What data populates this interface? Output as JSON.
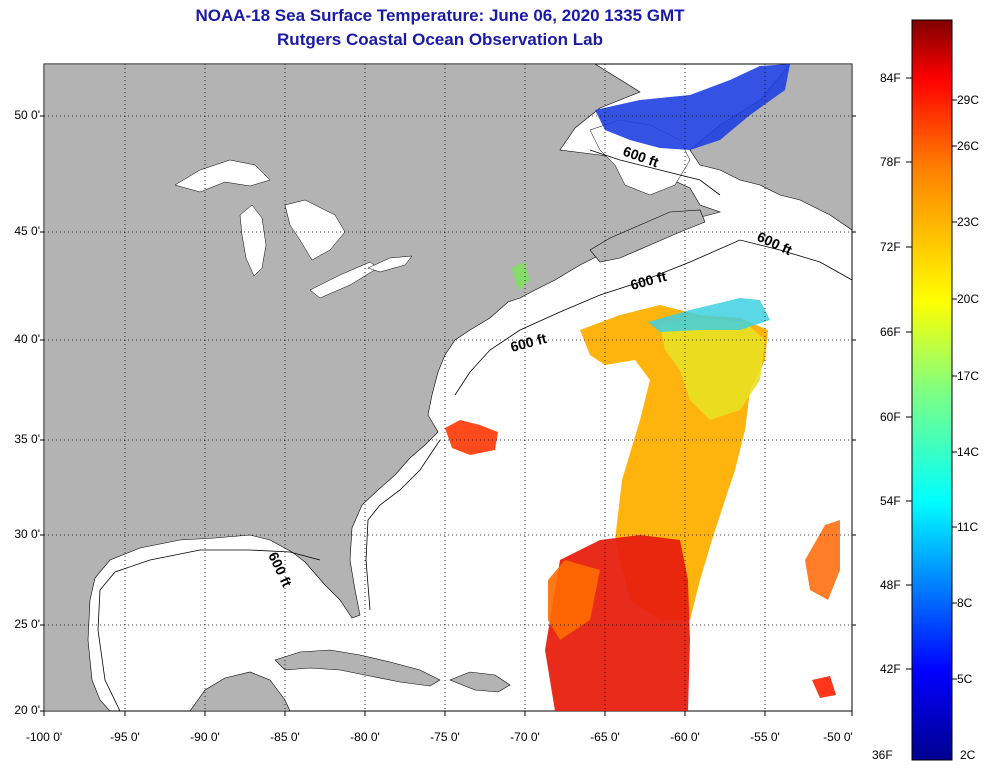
{
  "title": {
    "line1": "NOAA-18 Sea Surface Temperature:  June 06, 2020 1335 GMT",
    "line2": "Rutgers Coastal Ocean Observation Lab"
  },
  "map": {
    "lat_labels": [
      "50 0'",
      "45 0'",
      "40 0'",
      "35 0'",
      "30 0'",
      "25 0'",
      "20 0'"
    ],
    "lon_labels": [
      "-100 0'",
      "-95 0'",
      "-90 0'",
      "-85 0'",
      "-80 0'",
      "-75 0'",
      "-70 0'",
      "-65 0'",
      "-60 0'",
      "-55 0'",
      "-50 0'"
    ],
    "isobath_label": "600 ft",
    "colors": {
      "land": "#b3b3b3",
      "ocean_nodata": "#ffffff",
      "title": "#1a1aa6"
    }
  },
  "colorbar": {
    "f_labels": [
      "84F",
      "78F",
      "72F",
      "66F",
      "60F",
      "54F",
      "48F",
      "42F",
      "36F"
    ],
    "c_labels": [
      "29C",
      "26C",
      "23C",
      "20C",
      "17C",
      "14C",
      "11C",
      "8C",
      "5C",
      "2C"
    ],
    "colors": [
      "#7f0000",
      "#ff0000",
      "#ff8000",
      "#ffff00",
      "#80ff80",
      "#00ffff",
      "#0080ff",
      "#0000ff",
      "#00008f"
    ]
  }
}
